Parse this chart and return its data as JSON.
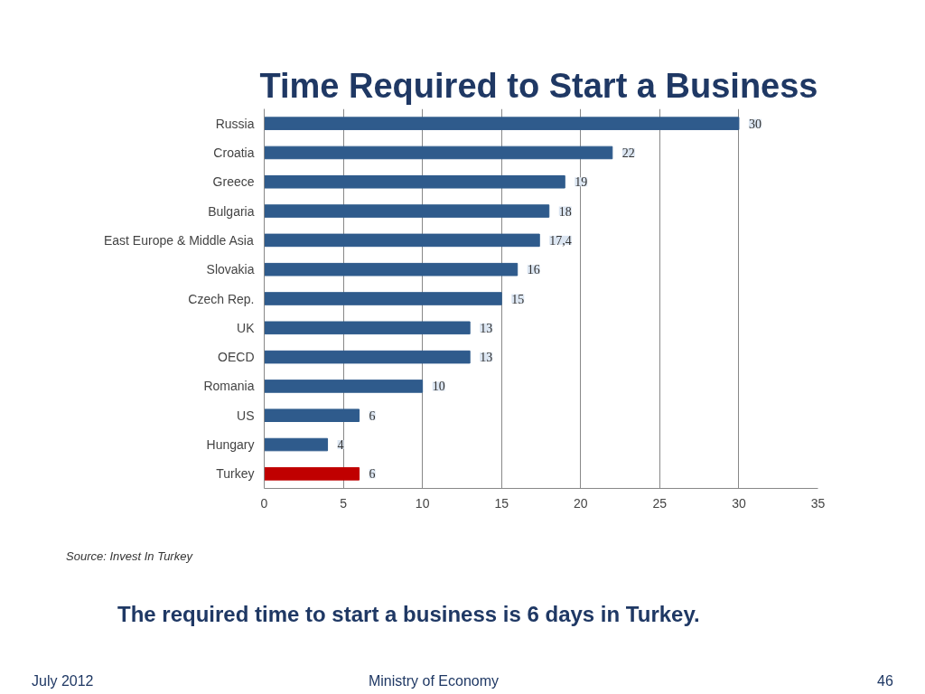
{
  "chart_data": {
    "type": "bar",
    "orientation": "horizontal",
    "title": "Time Required to Start a Business",
    "categories": [
      "Russia",
      "Croatia",
      "Greece",
      "Bulgaria",
      "East Europe & Middle Asia",
      "Slovakia",
      "Czech Rep.",
      "UK",
      "OECD",
      "Romania",
      "US",
      "Hungary",
      "Turkey"
    ],
    "values": [
      30,
      22,
      19,
      18,
      17.4,
      16,
      15,
      13,
      13,
      10,
      6,
      4,
      6
    ],
    "value_labels": [
      "30",
      "22",
      "19",
      "18",
      "17,4",
      "16",
      "15",
      "13",
      "13",
      "10",
      "6",
      "4",
      "6"
    ],
    "colors": [
      "#2f5b8c",
      "#2f5b8c",
      "#2f5b8c",
      "#2f5b8c",
      "#2f5b8c",
      "#2f5b8c",
      "#2f5b8c",
      "#2f5b8c",
      "#2f5b8c",
      "#2f5b8c",
      "#2f5b8c",
      "#2f5b8c",
      "#c00000"
    ],
    "xlim": [
      0,
      35
    ],
    "xticks": [
      0,
      5,
      10,
      15,
      20,
      25,
      30,
      35
    ],
    "grid": "x",
    "annotations": [
      "Source: Invest In Turkey",
      "The required time to start a business  is 6 days in Turkey.",
      "July 2012",
      "Ministry of Economy",
      "46"
    ]
  }
}
